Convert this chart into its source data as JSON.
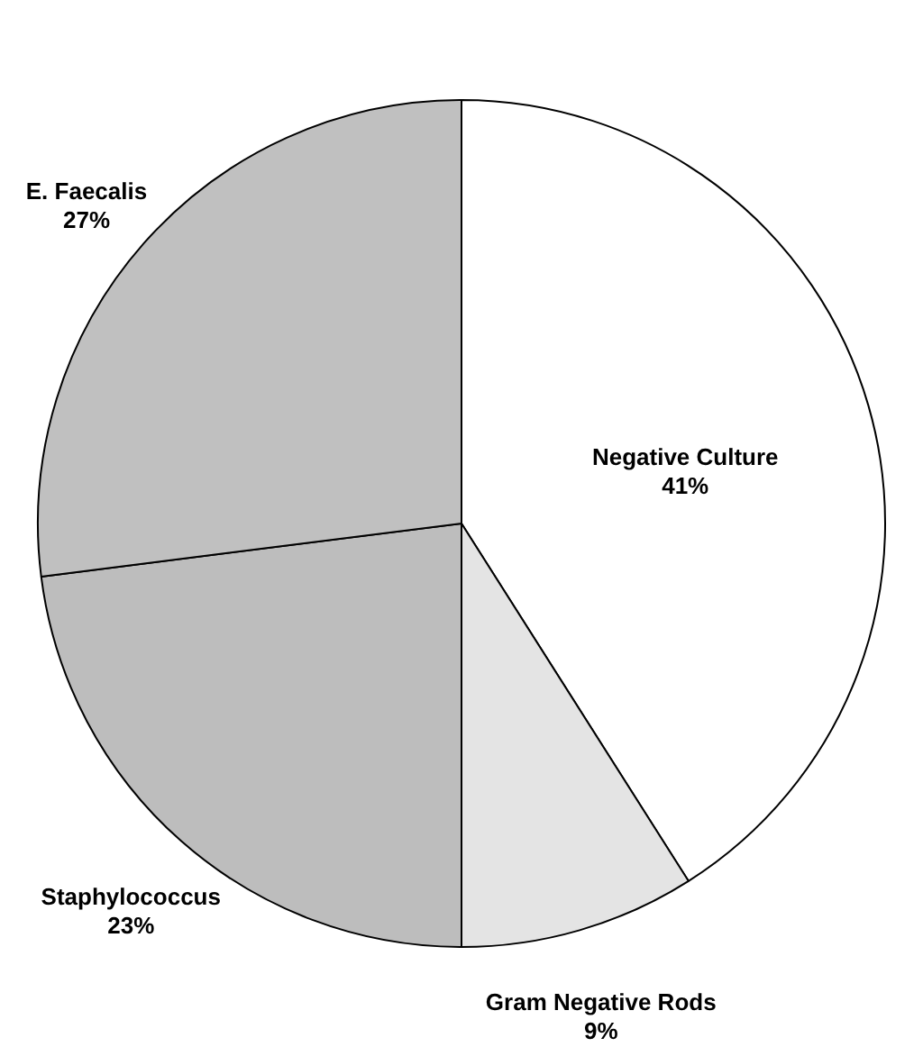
{
  "chart_data": {
    "type": "pie",
    "categories": [
      "Negative Culture",
      "Gram Negative Rods",
      "Staphylococcus",
      "E. Faecalis"
    ],
    "values": [
      41,
      9,
      23,
      27
    ],
    "colors": [
      "#ffffff",
      "#e4e4e4",
      "#bdbdbd",
      "#c0c0c0"
    ],
    "value_labels": [
      "41%",
      "9%",
      "23%",
      "27%"
    ],
    "legend": false
  }
}
